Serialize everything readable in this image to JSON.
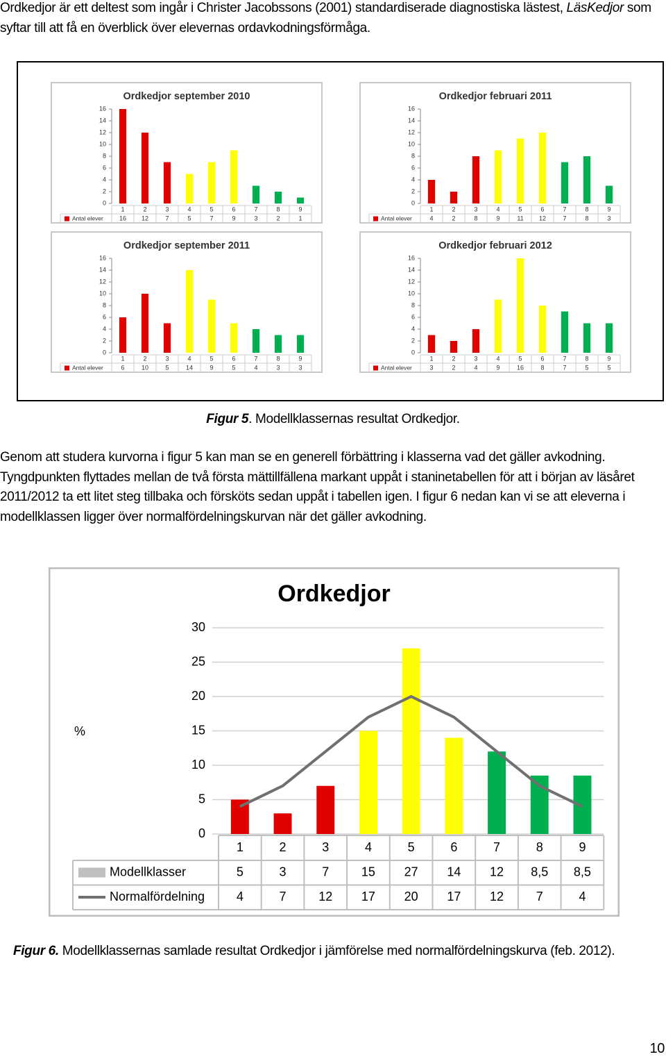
{
  "intro": [
    "Ordkedjor är ett deltest som ingår i Christer Jacobssons (2001) standardiserade diagnostiska lästest, ",
    "LäsKedjor",
    " som syftar till att få en överblick över elevernas ordavkodningsförmåga."
  ],
  "figure5_caption": [
    "Figur 5",
    ". Modellklassernas resultat Ordkedjor."
  ],
  "body": "Genom att studera kurvorna i figur 5 kan man se en generell förbättring i klasserna vad det gäller avkodning. Tyngdpunkten flyttades mellan de två första mättillfällena markant uppåt i staninetabellen för att i början av läsåret 2011/2012 ta ett litet steg tillbaka och försköts sedan uppåt i tabellen igen. I figur 6 nedan kan vi se att eleverna i modellklassen ligger över normalfördelningskurvan när det gäller avkodning.",
  "figure6_caption": [
    "Figur 6.",
    " Modellklassernas samlade resultat Ordkedjor i jämförelse med normalfördelningskurva (feb. 2012)."
  ],
  "page_number": "10",
  "chart_data": [
    {
      "type": "bar",
      "title": "Ordkedjor september 2010",
      "categories": [
        "1",
        "2",
        "3",
        "4",
        "5",
        "6",
        "7",
        "8",
        "9"
      ],
      "series": [
        {
          "name": "Antal elever",
          "color": "#e00000",
          "values": [
            16,
            12,
            7,
            5,
            7,
            9,
            3,
            2,
            1
          ],
          "colors": [
            "#e00000",
            "#e00000",
            "#e00000",
            "#ffff00",
            "#ffff00",
            "#ffff00",
            "#00b050",
            "#00b050",
            "#00b050"
          ]
        }
      ],
      "ylim": [
        0,
        16
      ],
      "yticks": [
        0,
        2,
        4,
        6,
        8,
        10,
        12,
        14,
        16
      ],
      "grid": false
    },
    {
      "type": "bar",
      "title": "Ordkedjor februari 2011",
      "categories": [
        "1",
        "2",
        "3",
        "4",
        "5",
        "6",
        "7",
        "8",
        "9"
      ],
      "series": [
        {
          "name": "Antal elever",
          "color": "#e00000",
          "values": [
            4,
            2,
            8,
            9,
            11,
            12,
            7,
            8,
            3
          ],
          "colors": [
            "#e00000",
            "#e00000",
            "#e00000",
            "#ffff00",
            "#ffff00",
            "#ffff00",
            "#00b050",
            "#00b050",
            "#00b050"
          ]
        }
      ],
      "ylim": [
        0,
        16
      ],
      "yticks": [
        0,
        2,
        4,
        6,
        8,
        10,
        12,
        14,
        16
      ],
      "grid": false
    },
    {
      "type": "bar",
      "title": "Ordkedjor september 2011",
      "categories": [
        "1",
        "2",
        "3",
        "4",
        "5",
        "6",
        "7",
        "8",
        "9"
      ],
      "series": [
        {
          "name": "Antal elever",
          "color": "#e00000",
          "values": [
            6,
            10,
            5,
            14,
            9,
            5,
            4,
            3,
            3
          ],
          "colors": [
            "#e00000",
            "#e00000",
            "#e00000",
            "#ffff00",
            "#ffff00",
            "#ffff00",
            "#00b050",
            "#00b050",
            "#00b050"
          ]
        }
      ],
      "ylim": [
        0,
        16
      ],
      "yticks": [
        0,
        2,
        4,
        6,
        8,
        10,
        12,
        14,
        16
      ],
      "grid": false
    },
    {
      "type": "bar",
      "title": "Ordkedjor februari 2012",
      "categories": [
        "1",
        "2",
        "3",
        "4",
        "5",
        "6",
        "7",
        "8",
        "9"
      ],
      "series": [
        {
          "name": "Antal elever",
          "color": "#e00000",
          "values": [
            3,
            2,
            4,
            9,
            16,
            8,
            7,
            5,
            5
          ],
          "colors": [
            "#e00000",
            "#e00000",
            "#e00000",
            "#ffff00",
            "#ffff00",
            "#ffff00",
            "#00b050",
            "#00b050",
            "#00b050"
          ]
        }
      ],
      "ylim": [
        0,
        16
      ],
      "yticks": [
        0,
        2,
        4,
        6,
        8,
        10,
        12,
        14,
        16
      ],
      "grid": false
    },
    {
      "type": "combo",
      "title": "Ordkedjor",
      "y_label": "%",
      "categories": [
        "1",
        "2",
        "3",
        "4",
        "5",
        "6",
        "7",
        "8",
        "9"
      ],
      "series": [
        {
          "name": "Modellklasser",
          "type": "bar",
          "color": "#c0c0c0",
          "values": [
            5,
            3,
            7,
            15,
            27,
            14,
            12,
            8.5,
            8.5
          ],
          "value_labels": [
            "5",
            "3",
            "7",
            "15",
            "27",
            "14",
            "12",
            "8,5",
            "8,5"
          ],
          "colors": [
            "#e00000",
            "#e00000",
            "#e00000",
            "#ffff00",
            "#ffff00",
            "#ffff00",
            "#00b050",
            "#00b050",
            "#00b050"
          ]
        },
        {
          "name": "Normalfördelning",
          "type": "line",
          "color": "#707070",
          "values": [
            4,
            7,
            12,
            17,
            20,
            17,
            12,
            7,
            4
          ]
        }
      ],
      "ylim": [
        0,
        30
      ],
      "yticks": [
        0,
        5,
        10,
        15,
        20,
        25,
        30
      ],
      "grid": true
    }
  ]
}
